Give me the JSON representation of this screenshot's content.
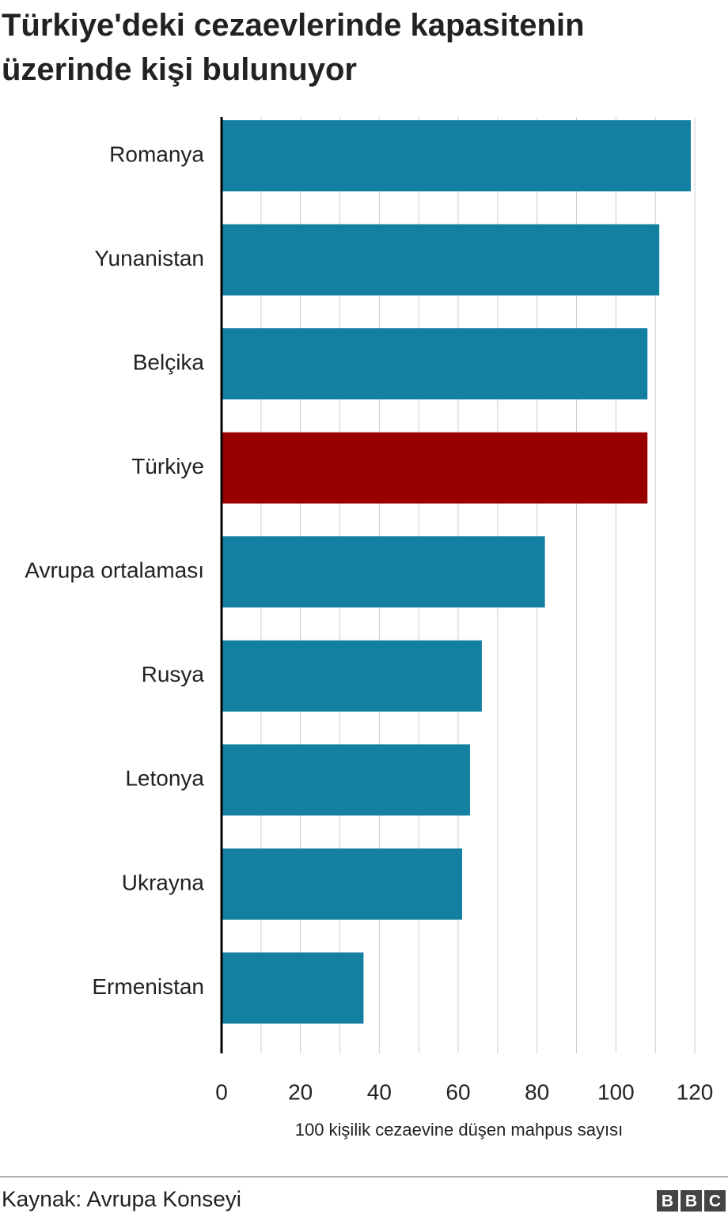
{
  "chart_data": {
    "type": "hbar",
    "title": "Türkiye'deki cezaevlerinde kapasitenin üzerinde kişi bulunuyor",
    "categories": [
      "Romanya",
      "Yunanistan",
      "Belçika",
      "Türkiye",
      "Avrupa ortalaması",
      "Rusya",
      "Letonya",
      "Ukrayna",
      "Ermenistan"
    ],
    "values": [
      119,
      111,
      108,
      108,
      82,
      66,
      63,
      61,
      36
    ],
    "colors": [
      "#1380a1",
      "#1380a1",
      "#1380a1",
      "#990000",
      "#1380a1",
      "#1380a1",
      "#1380a1",
      "#1380a1",
      "#1380a1"
    ],
    "xlim": [
      0,
      120
    ],
    "xticks": [
      0,
      20,
      40,
      60,
      80,
      100,
      120
    ],
    "x_minor_grid": [
      10,
      30,
      50,
      70,
      90,
      110
    ],
    "grid": true,
    "xlabel": "100 kişilik cezaevine düşen mahpus sayısı",
    "source": "Kaynak: Avrupa Konseyi",
    "logo": [
      "B",
      "B",
      "C"
    ]
  }
}
